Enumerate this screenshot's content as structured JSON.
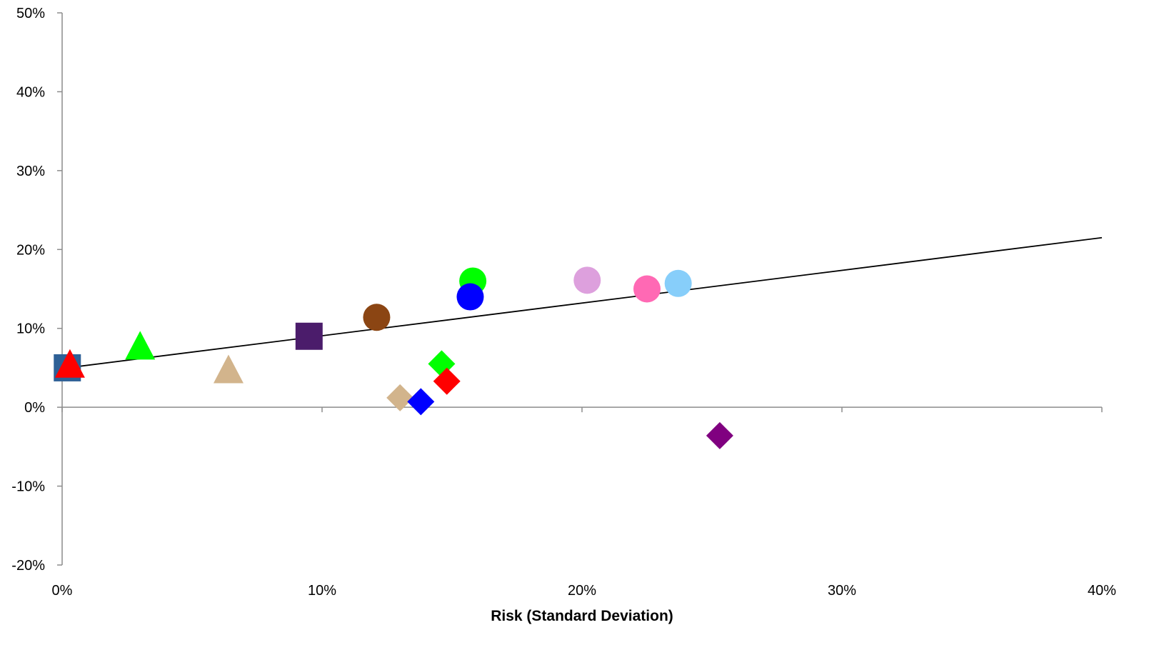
{
  "chart_data": {
    "type": "scatter",
    "title": "",
    "xlabel": "Risk (Standard Deviation)",
    "ylabel": "",
    "xlim": [
      0,
      0.4
    ],
    "ylim": [
      -0.2,
      0.5
    ],
    "x_ticks": [
      0,
      0.1,
      0.2,
      0.3,
      0.4
    ],
    "x_tick_labels": [
      "0%",
      "10%",
      "20%",
      "30%",
      "40%"
    ],
    "y_ticks": [
      -0.2,
      -0.1,
      0,
      0.1,
      0.2,
      0.3,
      0.4,
      0.5
    ],
    "y_tick_labels": [
      "-20%",
      "-10%",
      "0%",
      "10%",
      "20%",
      "30%",
      "40%",
      "50%"
    ],
    "grid": false,
    "legend": "none",
    "line": {
      "color": "#000000",
      "points": [
        [
          0.002,
          0.05
        ],
        [
          0.4,
          0.215
        ]
      ]
    },
    "points": [
      {
        "x": 0.002,
        "y": 0.05,
        "marker": "square",
        "color": "#2E6096"
      },
      {
        "x": 0.003,
        "y": 0.052,
        "marker": "triangle",
        "color": "#FF0000"
      },
      {
        "x": 0.03,
        "y": 0.075,
        "marker": "triangle",
        "color": "#00FF00"
      },
      {
        "x": 0.064,
        "y": 0.045,
        "marker": "triangle",
        "color": "#D2B48C"
      },
      {
        "x": 0.095,
        "y": 0.09,
        "marker": "square",
        "color": "#4B1C6B"
      },
      {
        "x": 0.121,
        "y": 0.114,
        "marker": "circle",
        "color": "#8B4513"
      },
      {
        "x": 0.13,
        "y": 0.012,
        "marker": "diamond",
        "color": "#D2B48C"
      },
      {
        "x": 0.138,
        "y": 0.007,
        "marker": "diamond",
        "color": "#0000FF"
      },
      {
        "x": 0.146,
        "y": 0.055,
        "marker": "diamond",
        "color": "#00FF00"
      },
      {
        "x": 0.148,
        "y": 0.033,
        "marker": "diamond",
        "color": "#FF0000"
      },
      {
        "x": 0.158,
        "y": 0.16,
        "marker": "circle",
        "color": "#00FF00"
      },
      {
        "x": 0.157,
        "y": 0.14,
        "marker": "circle",
        "color": "#0000FF"
      },
      {
        "x": 0.202,
        "y": 0.161,
        "marker": "circle",
        "color": "#DDA0DD"
      },
      {
        "x": 0.225,
        "y": 0.15,
        "marker": "circle",
        "color": "#FF69B4"
      },
      {
        "x": 0.237,
        "y": 0.157,
        "marker": "circle",
        "color": "#87CEFA"
      },
      {
        "x": 0.253,
        "y": -0.036,
        "marker": "diamond",
        "color": "#800080"
      }
    ]
  }
}
